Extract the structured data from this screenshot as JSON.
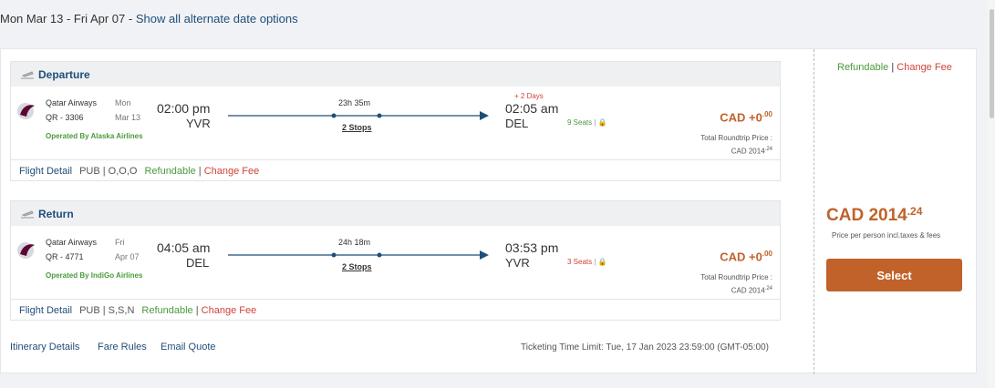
{
  "header": {
    "dates": "Mon Mar 13 - Fri Apr 07 -",
    "link": "Show all alternate date options"
  },
  "legs": [
    {
      "title": "Departure",
      "airline": "Qatar Airways",
      "flight": "QR - 3306",
      "day": "Mon",
      "date": "Mar 13",
      "dep_time": "02:00 pm",
      "dep_airport": "YVR",
      "duration": "23h 35m",
      "stops": "2 Stops",
      "day_offset": "+ 2 Days",
      "arr_time": "02:05 am",
      "arr_airport": "DEL",
      "seats": "9 Seats",
      "operated": "Operated By Alaska Airlines",
      "price": "CAD +0",
      "price_decimal": ".00",
      "total_label": "Total Roundtrip Price :",
      "total": "CAD 2014",
      "total_decimal": ".24",
      "footer": {
        "detail": "Flight Detail",
        "fare": "PUB | O,O,O",
        "refundable": "Refundable",
        "sep": "|",
        "change_fee": "Change Fee"
      }
    },
    {
      "title": "Return",
      "airline": "Qatar Airways",
      "flight": "QR - 4771",
      "day": "Fri",
      "date": "Apr 07",
      "dep_time": "04:05 am",
      "dep_airport": "DEL",
      "duration": "24h 18m",
      "stops": "2 Stops",
      "arr_time": "03:53 pm",
      "arr_airport": "YVR",
      "seats": "3 Seats",
      "operated": "Operated By IndiGo Airlines",
      "price": "CAD +0",
      "price_decimal": ".00",
      "total_label": "Total Roundtrip Price :",
      "total": "CAD 2014",
      "total_decimal": ".24",
      "footer": {
        "detail": "Flight Detail",
        "fare": "PUB | S,S,N",
        "refundable": "Refundable",
        "sep": "|",
        "change_fee": "Change Fee"
      }
    }
  ],
  "links": [
    "Itinerary Details",
    "Fare Rules",
    "Email Quote"
  ],
  "ticketing": "Ticketing Time Limit: Tue, 17 Jan 2023 23:59:00 (GMT-05:00)",
  "side": {
    "refundable": "Refundable",
    "sep": "|",
    "change_fee": "Change Fee",
    "price": "CAD 2014",
    "price_decimal": ".24",
    "note": "Price per person incl.taxes & fees",
    "button": "Select"
  }
}
